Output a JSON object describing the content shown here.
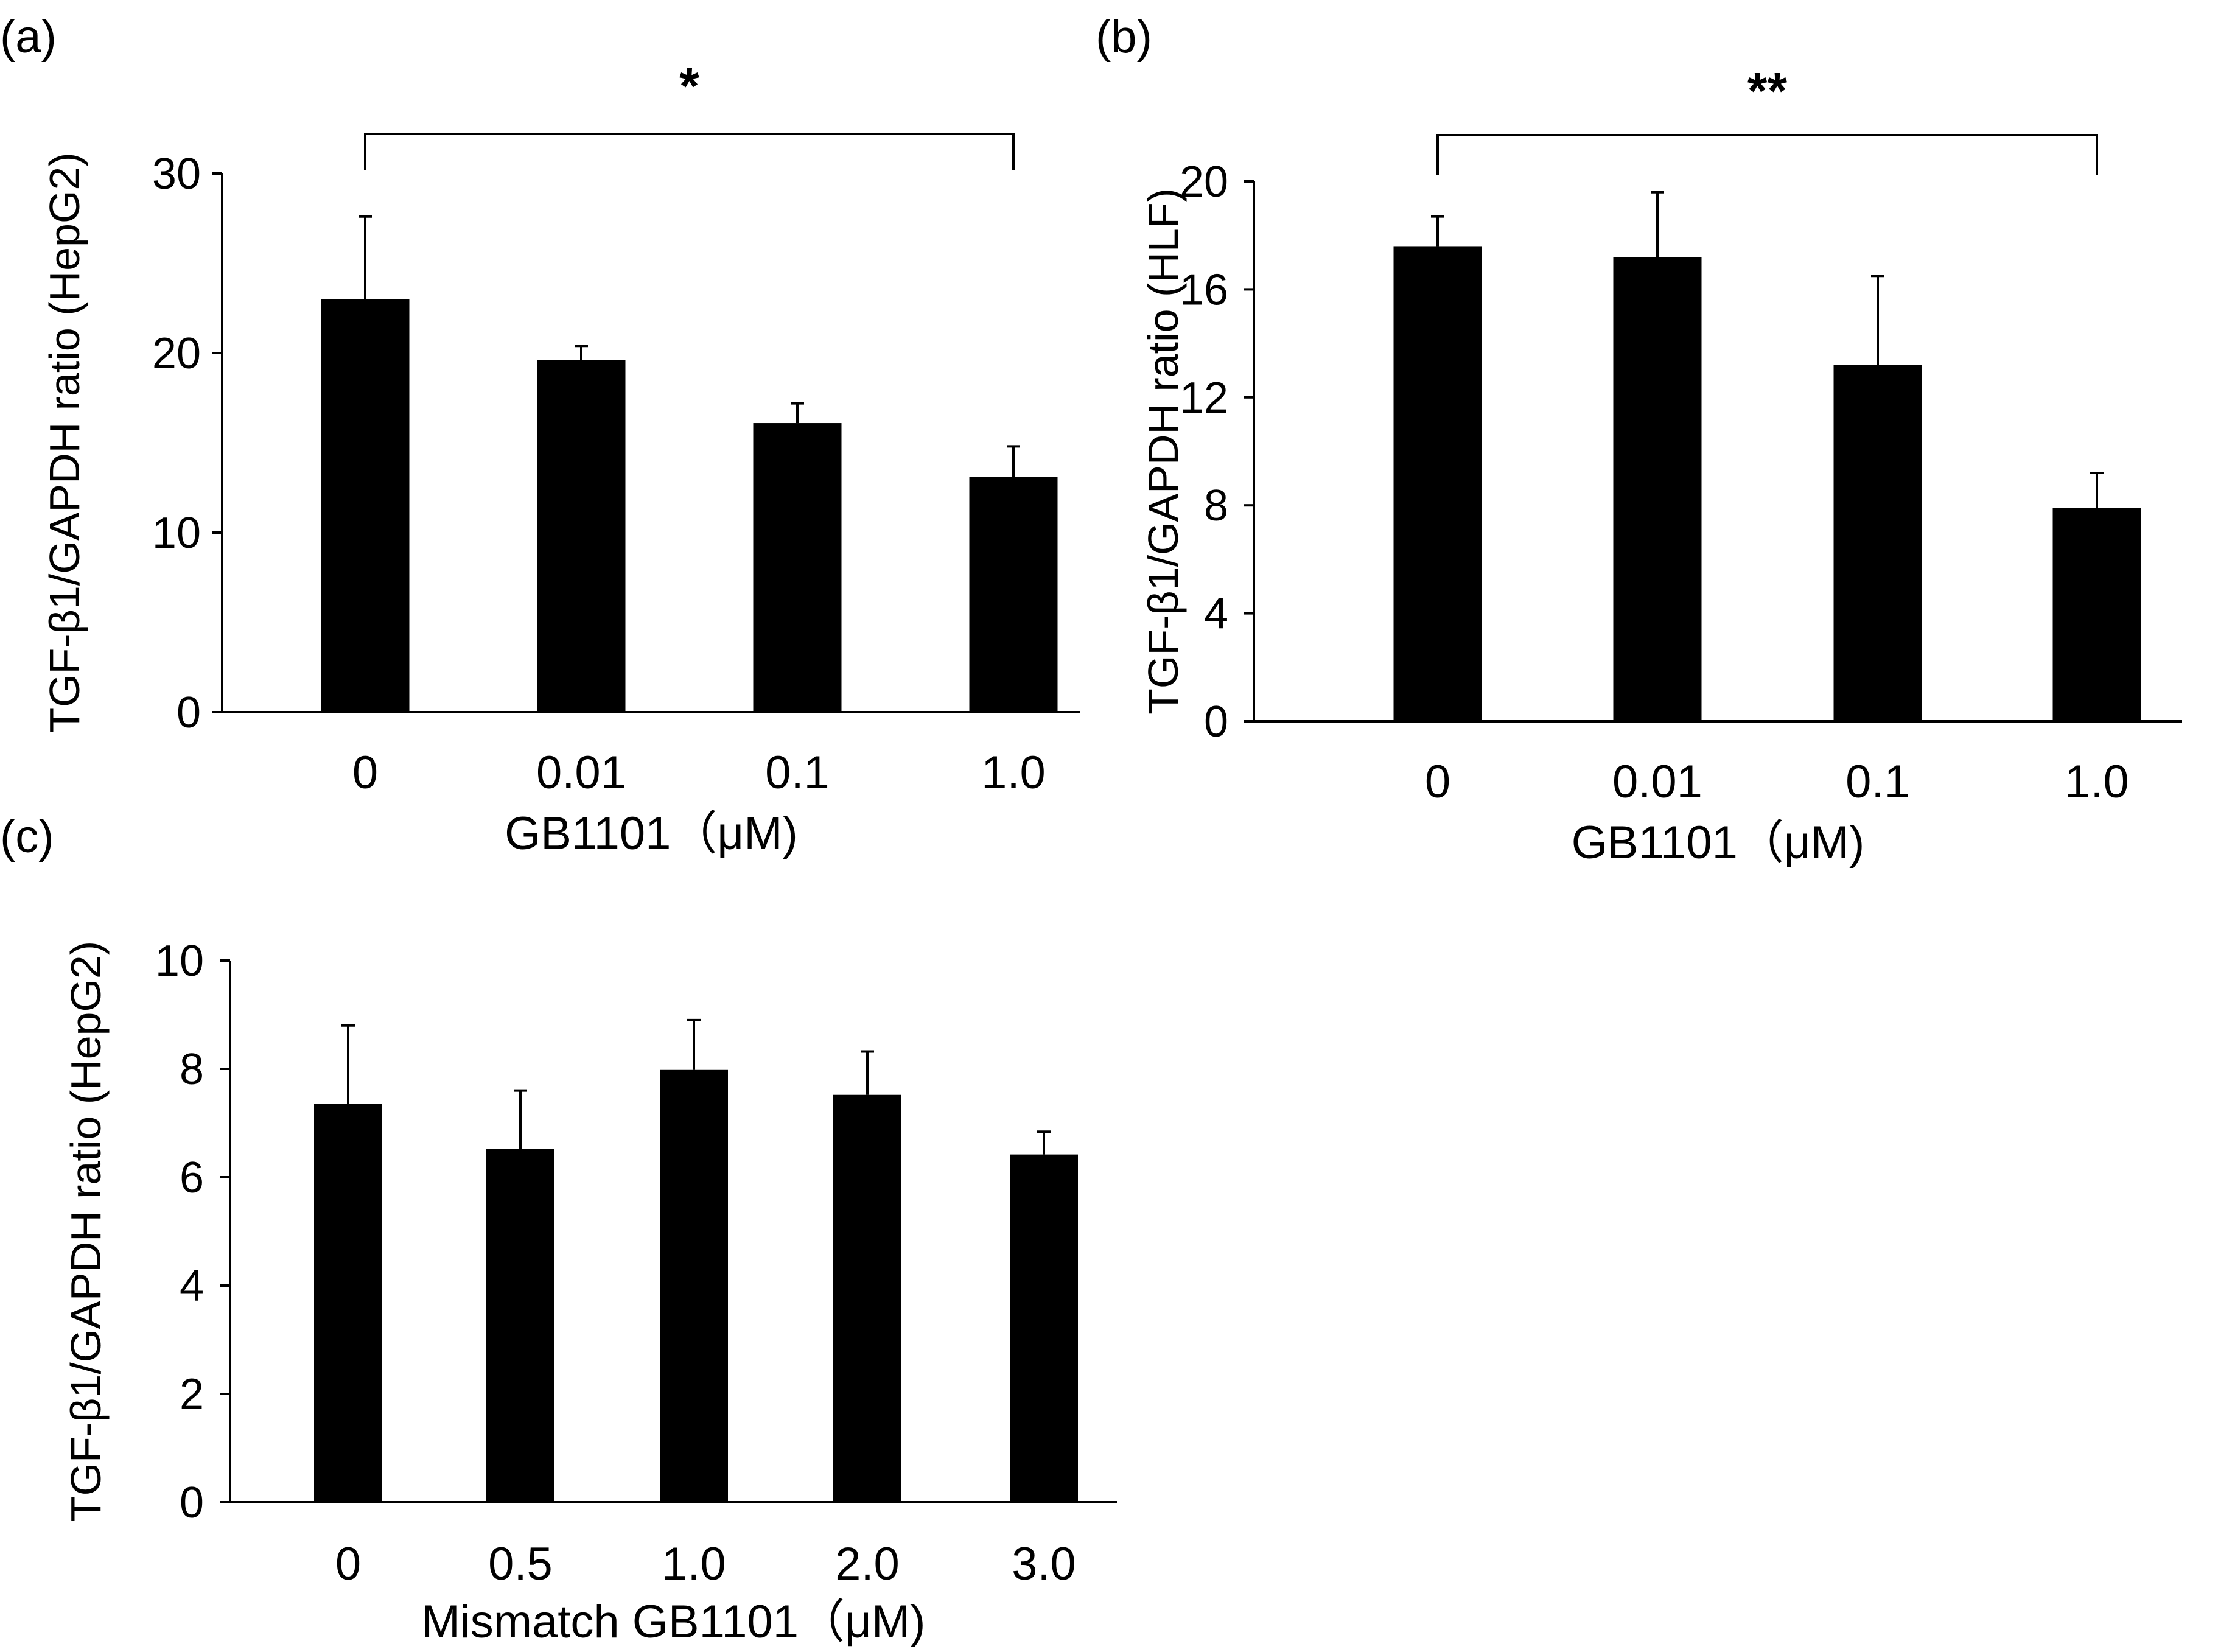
{
  "chart_data": [
    {
      "panel": "(a)",
      "type": "bar",
      "categories": [
        "0",
        "0.01",
        "0.1",
        "1.0"
      ],
      "series": [
        {
          "name": "TGF-β1/GAPDH ratio (HepG2)",
          "values": [
            23.0,
            19.6,
            16.1,
            13.1
          ]
        }
      ],
      "error_bars": [
        4.6,
        0.8,
        1.1,
        1.7
      ],
      "yticks": [
        "0",
        "10",
        "20",
        "30"
      ],
      "ylim": [
        0,
        30
      ],
      "ylabel": "TGF-β1/GAPDH ratio (HepG2)",
      "xlabel": "GB1101（μM)",
      "significance": {
        "from": "0",
        "to": "1.0",
        "label": "*"
      }
    },
    {
      "panel": "(b)",
      "type": "bar",
      "categories": [
        "0",
        "0.01",
        "0.1",
        "1.0"
      ],
      "series": [
        {
          "name": "TGF-β1/GAPDH ratio (HLF)",
          "values": [
            17.6,
            17.2,
            13.2,
            7.9
          ]
        }
      ],
      "error_bars": [
        1.1,
        2.4,
        3.3,
        1.3
      ],
      "yticks": [
        "0",
        "4",
        "8",
        "12",
        "16",
        "20"
      ],
      "ylim": [
        0,
        20
      ],
      "ylabel": "TGF-β1/GAPDH ratio (HLF)",
      "xlabel": "GB1101（μM)",
      "significance": {
        "from": "0",
        "to": "1.0",
        "label": "**"
      }
    },
    {
      "panel": "(c)",
      "type": "bar",
      "categories": [
        "0",
        "0.5",
        "1.0",
        "2.0",
        "3.0"
      ],
      "series": [
        {
          "name": "TGF-β1/GAPDH ratio (HepG2)",
          "values": [
            7.35,
            6.52,
            7.98,
            7.52,
            6.42
          ]
        }
      ],
      "error_bars": [
        1.45,
        1.08,
        0.92,
        0.8,
        0.42
      ],
      "yticks": [
        "0",
        "2",
        "4",
        "6",
        "8",
        "10"
      ],
      "ylim": [
        0,
        10
      ],
      "ylabel": "TGF-β1/GAPDH ratio (HepG2)",
      "xlabel": "Mismatch GB1101（μM)"
    }
  ]
}
